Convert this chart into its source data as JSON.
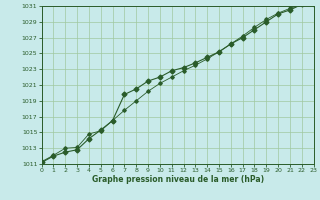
{
  "xlabel": "Graphe pression niveau de la mer (hPa)",
  "bg_color": "#c8eaea",
  "grid_color": "#a0c8a0",
  "line_color": "#2a5c2a",
  "ylim": [
    1011,
    1031
  ],
  "xlim": [
    0,
    23
  ],
  "yticks": [
    1011,
    1013,
    1015,
    1017,
    1019,
    1021,
    1023,
    1025,
    1027,
    1029,
    1031
  ],
  "xticks": [
    0,
    1,
    2,
    3,
    4,
    5,
    6,
    7,
    8,
    9,
    10,
    11,
    12,
    13,
    14,
    15,
    16,
    17,
    18,
    19,
    20,
    21,
    22,
    23
  ],
  "line1_x": [
    0,
    1,
    2,
    3,
    4,
    5,
    6,
    7,
    8,
    9,
    10,
    11,
    12,
    13,
    14,
    15,
    16,
    17,
    18,
    19,
    20,
    21,
    22,
    23
  ],
  "line1_y": [
    1011.2,
    1012.0,
    1012.5,
    1012.8,
    1014.2,
    1015.3,
    1016.5,
    1019.8,
    1020.5,
    1021.5,
    1022.0,
    1022.8,
    1023.2,
    1023.8,
    1024.5,
    1025.2,
    1026.2,
    1027.0,
    1028.0,
    1029.0,
    1030.0,
    1030.5,
    1031.2,
    1031.3
  ],
  "line2_x": [
    0,
    1,
    2,
    3,
    4,
    5,
    6,
    7,
    8,
    9,
    10,
    11,
    12,
    13,
    14,
    15,
    16,
    17,
    18,
    19,
    20,
    21,
    22,
    23
  ],
  "line2_y": [
    1011.3,
    1012.1,
    1013.0,
    1013.1,
    1014.8,
    1015.2,
    1016.5,
    1017.8,
    1019.0,
    1020.2,
    1021.2,
    1022.0,
    1022.8,
    1023.5,
    1024.3,
    1025.2,
    1026.2,
    1027.2,
    1028.3,
    1029.3,
    1030.1,
    1030.7,
    1031.2,
    1031.5
  ]
}
